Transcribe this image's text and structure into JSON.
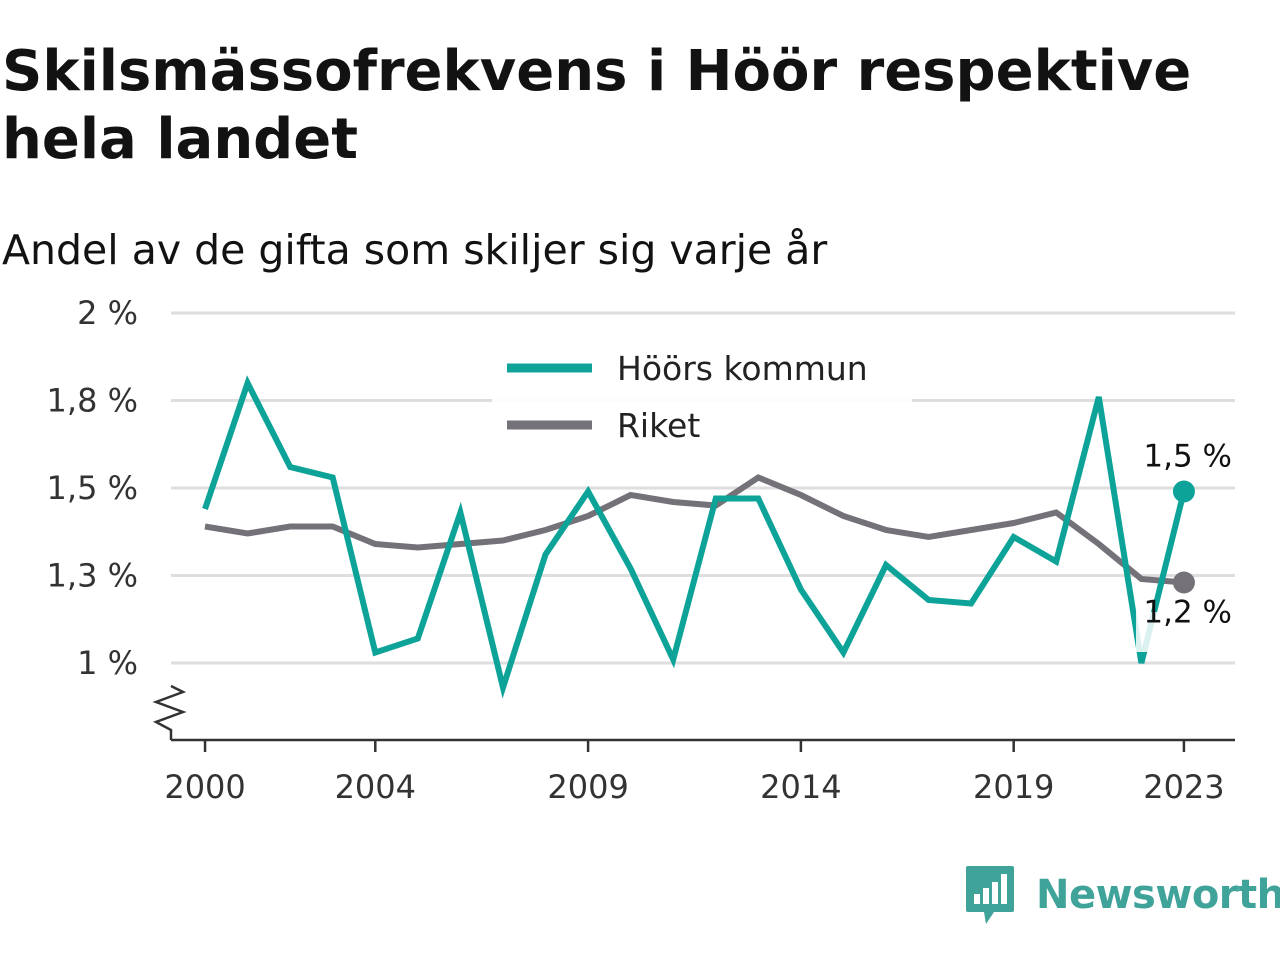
{
  "header": {
    "title": "Skilsmässofrekvens i Höör respektive hela landet",
    "subtitle": "Andel av de gifta som skiljer sig varje år"
  },
  "brand": {
    "name": "Newsworthy",
    "icon": "newsworthy-logo-icon",
    "color": "#3fa39a"
  },
  "chart_data": {
    "type": "line",
    "x": [
      2000,
      2001,
      2002,
      2003,
      2004,
      2005,
      2006,
      2007,
      2008,
      2009,
      2010,
      2011,
      2012,
      2013,
      2014,
      2015,
      2016,
      2017,
      2018,
      2019,
      2020,
      2021,
      2022,
      2023
    ],
    "series": [
      {
        "name": "Höörs kommun",
        "color": "#0da399",
        "values": [
          1.44,
          1.8,
          1.56,
          1.53,
          1.03,
          1.07,
          1.43,
          0.93,
          1.31,
          1.49,
          1.27,
          1.01,
          1.47,
          1.47,
          1.21,
          1.03,
          1.28,
          1.18,
          1.17,
          1.36,
          1.29,
          1.76,
          1.0,
          1.49
        ],
        "end_label": "1,5 %"
      },
      {
        "name": "Riket",
        "color": "#747278",
        "values": [
          1.39,
          1.37,
          1.39,
          1.39,
          1.34,
          1.33,
          1.34,
          1.35,
          1.38,
          1.42,
          1.48,
          1.46,
          1.45,
          1.53,
          1.48,
          1.42,
          1.38,
          1.36,
          1.38,
          1.4,
          1.43,
          1.34,
          1.24,
          1.23
        ],
        "end_label": "1,2 %"
      }
    ],
    "x_ticks": [
      2000,
      2004,
      2009,
      2014,
      2019,
      2023
    ],
    "x_tick_labels": [
      "2000",
      "2004",
      "2009",
      "2014",
      "2019",
      "2023"
    ],
    "y_ticks": [
      1.0,
      1.25,
      1.5,
      1.75,
      2.0
    ],
    "y_tick_labels": [
      "1 %",
      "1,3 %",
      "1,5 %",
      "1,8 %",
      "2 %"
    ],
    "xlim": [
      1999.2,
      2024.2
    ],
    "ylim": [
      0.78,
      2.0
    ],
    "axis_break": true,
    "grid": true,
    "legend": "top-center",
    "xlabel": "",
    "ylabel": ""
  }
}
